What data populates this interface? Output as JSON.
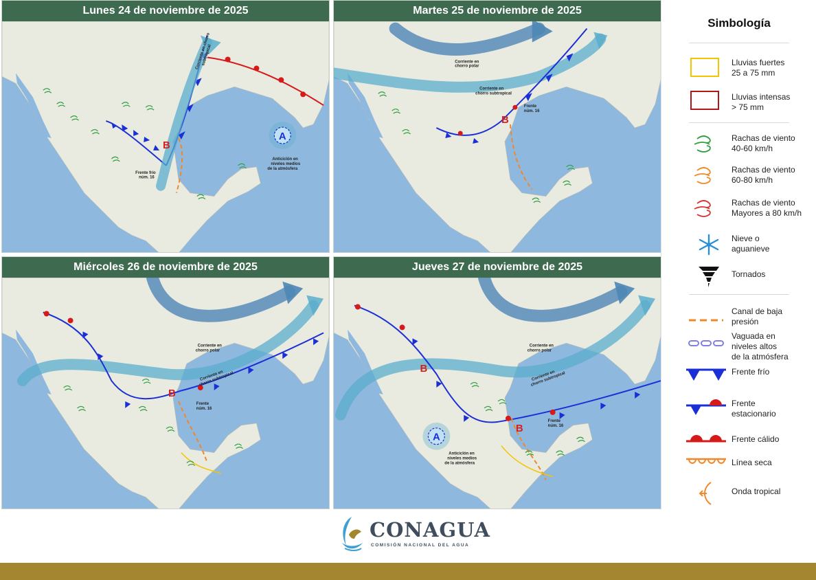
{
  "panels": [
    {
      "title": "Lunes 24 de noviembre de 2025",
      "labels": {
        "front": [
          "Frente frío",
          "núm. 16"
        ],
        "anticyclone": [
          "Anticiclón en",
          "niveles medios",
          "de la atmósfera"
        ],
        "jet": [
          "Corriente en chorro",
          "subtropical"
        ]
      }
    },
    {
      "title": "Martes 25 de noviembre de 2025",
      "labels": {
        "polar": [
          "Corriente en",
          "chorro polar"
        ],
        "subtropical": [
          "Corriente en",
          "chorro subtropical"
        ],
        "front": [
          "Frente",
          "núm. 16"
        ]
      }
    },
    {
      "title": "Miércoles 26 de noviembre de 2025",
      "labels": {
        "polar": [
          "Corriente en",
          "chorro polar"
        ],
        "subtropical": [
          "Corriente en",
          "chorro subtropical"
        ],
        "front": [
          "Frente",
          "núm. 16"
        ]
      }
    },
    {
      "title": "Jueves 27 de noviembre de 2025",
      "labels": {
        "polar": [
          "Corriente en",
          "chorro polar"
        ],
        "subtropical": [
          "Corriente en",
          "chorro subtropical"
        ],
        "front": [
          "Frente",
          "núm. 16"
        ],
        "anticyclone": [
          "Anticiclón en",
          "niveles medios",
          "de la atmósfera"
        ]
      }
    }
  ],
  "symbols": {
    "low_pressure": "B",
    "high_pressure": "A"
  },
  "legend": {
    "title": "Simbología",
    "items": [
      {
        "icon": "heavy-rain-box",
        "label": "Lluvias fuertes\n25 a 75 mm"
      },
      {
        "icon": "intense-rain-box",
        "label": "Lluvias intensas\n> 75 mm"
      },
      {
        "icon": "wind-green-icon",
        "label": "Rachas de viento\n40-60 km/h"
      },
      {
        "icon": "wind-orange-icon",
        "label": "Rachas de viento\n60-80 km/h"
      },
      {
        "icon": "wind-red-icon",
        "label": "Rachas de viento\nMayores a 80 km/h"
      },
      {
        "icon": "snowflake-icon",
        "label": "Nieve o\naguanieve"
      },
      {
        "icon": "tornado-icon",
        "label": "Tornados"
      },
      {
        "icon": "trough-line",
        "label": "Canal de baja\npresión"
      },
      {
        "icon": "upper-trough-line",
        "label": "Vaguada en\nniveles altos\nde la atmósfera"
      },
      {
        "icon": "cold-front-line",
        "label": "Frente frío"
      },
      {
        "icon": "stationary-front-line",
        "label": "Frente\nestacionario"
      },
      {
        "icon": "warm-front-line",
        "label": "Frente cálido"
      },
      {
        "icon": "dry-line",
        "label": "Línea seca"
      },
      {
        "icon": "tropical-wave-icon",
        "label": "Onda tropical"
      }
    ]
  },
  "colors": {
    "header": "#3e6b50",
    "ocean": "#8fb8de",
    "land": "#e9eae0",
    "cold_front": "#1b2fd6",
    "warm_front": "#d61a1a",
    "jet": "#5aaecd",
    "trough": "#f0882a",
    "heavy_rain": "#f5c400",
    "intense_rain": "#b01818",
    "wind_green": "#2f9e3f",
    "wind_orange": "#f08a24",
    "wind_red": "#d83333",
    "footer": "#a48631"
  },
  "footer": {
    "brand": "CONAGUA",
    "subtitle": "COMISIÓN NACIONAL DEL AGUA"
  }
}
